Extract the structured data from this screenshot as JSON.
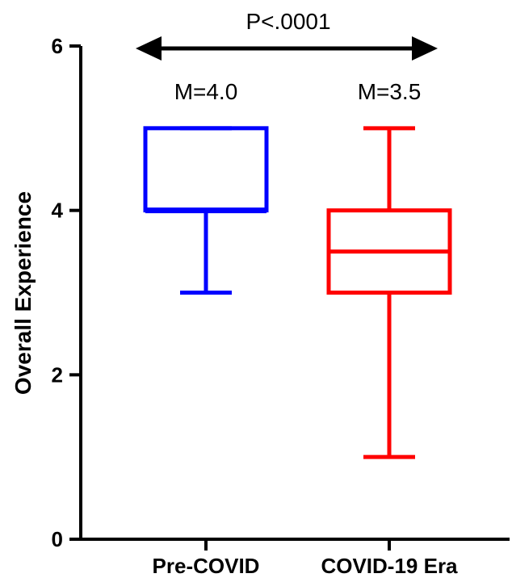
{
  "chart_data": {
    "type": "box",
    "ylabel": "Overall Experience",
    "xlabel": "",
    "ylim": [
      0,
      6
    ],
    "yticks": [
      "0",
      "2",
      "4",
      "6"
    ],
    "grid": false,
    "categories": [
      "Pre-COVID",
      "COVID-19 Era"
    ],
    "boxes": [
      {
        "category": "Pre-COVID",
        "min": 3,
        "q1": 4,
        "median": 4,
        "q3": 5,
        "max": 5,
        "mean_label": "M=4.0",
        "color": "#0000ff"
      },
      {
        "category": "COVID-19 Era",
        "min": 1,
        "q1": 3,
        "median": 3.5,
        "q3": 4,
        "max": 5,
        "mean_label": "M=3.5",
        "color": "#ff0000"
      }
    ],
    "comparison": {
      "label": "P<.0001",
      "style": "double-arrow"
    }
  }
}
